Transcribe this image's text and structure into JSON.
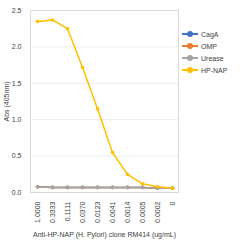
{
  "chart_data": {
    "type": "line",
    "x_label": "Anti-HP-NAP (H. Pylori) clone RM414 (ug/mL)",
    "y_label": "Abs (405nm)",
    "categories": [
      "1.0000",
      "0.3333",
      "0.1111",
      "0.0370",
      "0.0123",
      "0.0041",
      "0.0014",
      "0.0005",
      "0.0002",
      "0"
    ],
    "series": [
      {
        "name": "CagA",
        "color": "#4472c4",
        "values": [
          0.08,
          0.07,
          0.07,
          0.07,
          0.07,
          0.07,
          0.07,
          0.07,
          0.06,
          0.06
        ]
      },
      {
        "name": "OMP",
        "color": "#ed7d31",
        "values": [
          0.08,
          0.07,
          0.07,
          0.07,
          0.07,
          0.07,
          0.07,
          0.07,
          0.06,
          0.06
        ]
      },
      {
        "name": "Urease",
        "color": "#a5a5a5",
        "values": [
          0.08,
          0.07,
          0.07,
          0.07,
          0.07,
          0.07,
          0.07,
          0.07,
          0.06,
          0.06
        ]
      },
      {
        "name": "HP-NAP",
        "color": "#ffc000",
        "values": [
          2.35,
          2.37,
          2.25,
          1.72,
          1.15,
          0.55,
          0.25,
          0.12,
          0.08,
          0.06
        ]
      }
    ],
    "ylim": [
      0,
      2.5
    ],
    "yticks": [
      {
        "value": 0,
        "label": "0.0"
      },
      {
        "value": 0.5,
        "label": "0.5"
      },
      {
        "value": 1,
        "label": "1.0"
      },
      {
        "value": 1.5,
        "label": "1.5"
      },
      {
        "value": 2,
        "label": "2.0"
      },
      {
        "value": 2.5,
        "label": "2.5"
      }
    ],
    "grid": true,
    "legend": "right",
    "marker": "circle"
  }
}
